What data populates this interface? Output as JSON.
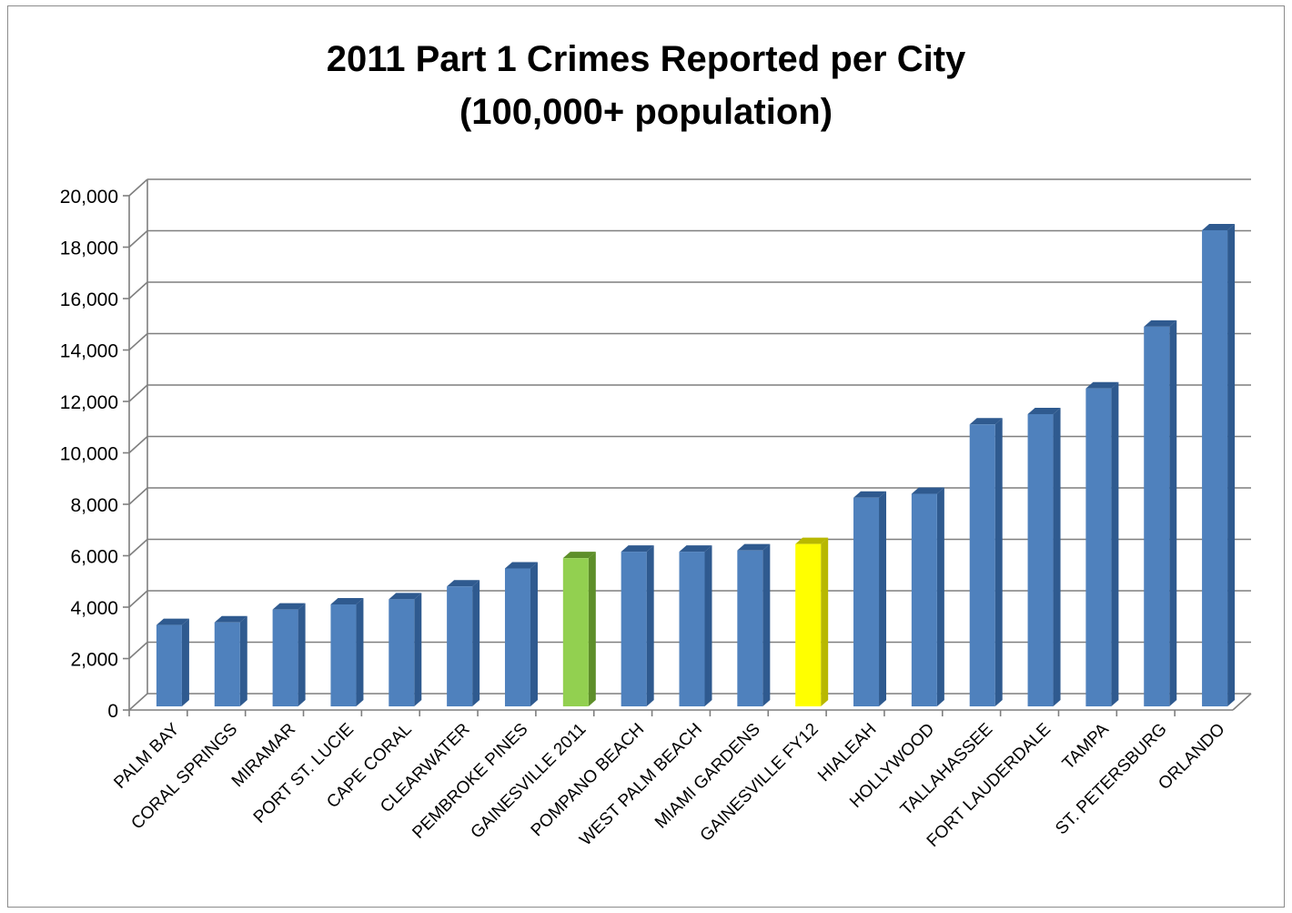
{
  "chart_data": {
    "type": "bar",
    "title": "2011 Part 1 Crimes Reported per City",
    "subtitle": "(100,000+ population)",
    "categories": [
      "PALM BAY",
      "CORAL SPRINGS",
      "MIRAMAR",
      "PORT ST. LUCIE",
      "CAPE CORAL",
      "CLEARWATER",
      "PEMBROKE PINES",
      "GAINESVILLE 2011",
      "POMPANO BEACH",
      "WEST PALM BEACH",
      "MIAMI GARDENS",
      "GAINESVILLE FY12",
      "HIALEAH",
      "HOLLYWOOD",
      "TALLAHASSEE",
      "FORT LAUDERDALE",
      "TAMPA",
      "ST. PETERSBURG",
      "ORLANDO"
    ],
    "values": [
      3200,
      3300,
      3800,
      4000,
      4200,
      4700,
      5400,
      5800,
      6050,
      6050,
      6100,
      6350,
      8150,
      8300,
      11000,
      11400,
      12400,
      14800,
      18550
    ],
    "colors": [
      "#4f81bd",
      "#4f81bd",
      "#4f81bd",
      "#4f81bd",
      "#4f81bd",
      "#4f81bd",
      "#4f81bd",
      "#92d050",
      "#4f81bd",
      "#4f81bd",
      "#4f81bd",
      "#ffff00",
      "#4f81bd",
      "#4f81bd",
      "#4f81bd",
      "#4f81bd",
      "#4f81bd",
      "#4f81bd",
      "#4f81bd"
    ],
    "side_colors": [
      "#2f5a8f",
      "#2f5a8f",
      "#2f5a8f",
      "#2f5a8f",
      "#2f5a8f",
      "#2f5a8f",
      "#2f5a8f",
      "#5e8f2a",
      "#2f5a8f",
      "#2f5a8f",
      "#2f5a8f",
      "#b8b800",
      "#2f5a8f",
      "#2f5a8f",
      "#2f5a8f",
      "#2f5a8f",
      "#2f5a8f",
      "#2f5a8f",
      "#2f5a8f"
    ],
    "yticks": [
      "0",
      "2,000",
      "4,000",
      "6,000",
      "8,000",
      "10,000",
      "12,000",
      "14,000",
      "16,000",
      "18,000",
      "20,000"
    ],
    "ylim": [
      0,
      20000
    ],
    "grid": true,
    "legend": "none"
  }
}
